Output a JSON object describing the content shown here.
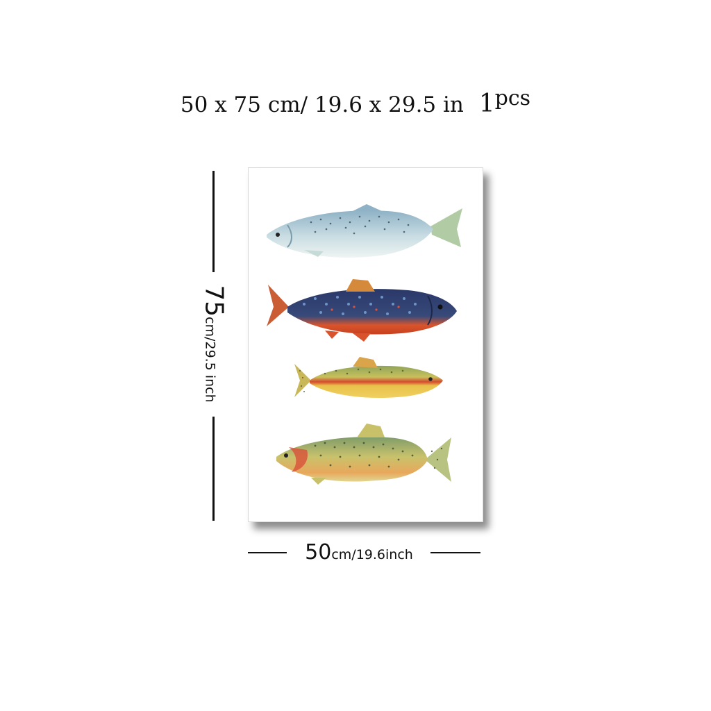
{
  "headline": {
    "size": "50 x 75 cm/ 19.6  x  29.5 in",
    "quantity": "1",
    "quantity_unit": "pcs"
  },
  "height_label": {
    "value": "75",
    "unit": "cm/29.5 inch"
  },
  "width_label": {
    "value": "50",
    "unit": "cm/19.6inch"
  },
  "artwork": {
    "fish": [
      "salmon-illustration",
      "brook-trout-illustration",
      "golden-trout-illustration",
      "cutthroat-trout-illustration"
    ],
    "colors": {
      "salmon_body": "#bcd4dc",
      "brook_body": "#2f3a66",
      "brook_belly": "#e0502a",
      "golden_body": "#d9c04a",
      "golden_stripe": "#d2442e",
      "cutthroat_body": "#c9c06a",
      "cutthroat_belly": "#e6a05a"
    }
  }
}
